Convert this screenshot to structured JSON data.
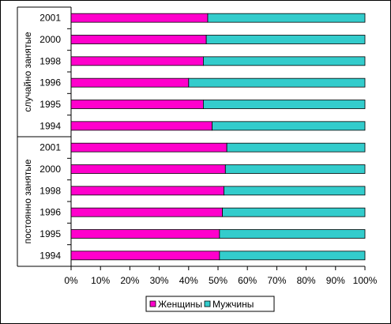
{
  "chart_data": {
    "type": "bar",
    "orientation": "horizontal",
    "stacked": "percent",
    "groups": [
      {
        "name": "случайно занятые",
        "categories": [
          "2001",
          "2000",
          "1998",
          "1996",
          "1995",
          "1994"
        ]
      },
      {
        "name": "постоянно занятые",
        "categories": [
          "2001",
          "2000",
          "1998",
          "1996",
          "1995",
          "1994"
        ]
      }
    ],
    "series": [
      {
        "name": "Женщины",
        "color": "#FF00CC",
        "values": [
          46.5,
          46,
          45,
          40,
          45,
          48,
          53,
          52.5,
          52,
          51.5,
          50.5,
          50.5
        ]
      },
      {
        "name": "Мужчины",
        "color": "#33CCCC",
        "values": [
          53.5,
          54,
          55,
          60,
          55,
          52,
          47,
          47.5,
          48,
          48.5,
          49.5,
          49.5
        ]
      }
    ],
    "x_ticks": [
      "0%",
      "10%",
      "20%",
      "30%",
      "40%",
      "50%",
      "60%",
      "70%",
      "80%",
      "90%",
      "100%"
    ],
    "xlim": [
      0,
      100
    ],
    "grid": false,
    "legend": "bottom"
  }
}
